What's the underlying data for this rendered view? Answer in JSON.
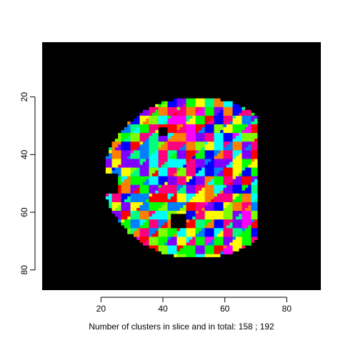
{
  "chart_data": {
    "type": "heatmap",
    "title": "",
    "xlabel": "Number of clusters in slice and in total:  158 ;   192",
    "ylabel": "",
    "xlim": [
      1,
      91
    ],
    "ylim": [
      1,
      87
    ],
    "y_reversed": true,
    "x_ticks": [
      20,
      40,
      60,
      80
    ],
    "y_ticks": [
      20,
      40,
      60,
      80
    ],
    "x_tick_labels": [
      "20",
      "40",
      "60",
      "80"
    ],
    "y_tick_labels": [
      "20",
      "40",
      "60",
      "80"
    ],
    "clusters_in_slice": 158,
    "clusters_in_total": 192,
    "background_color": "#000000",
    "palette": [
      "#ff0000",
      "#ff00ff",
      "#0000ff",
      "#00ffff",
      "#00ff00",
      "#ffff00",
      "#ff8000",
      "#8000ff",
      "#00ff80",
      "#ff0080",
      "#80ff00",
      "#0080ff"
    ]
  }
}
